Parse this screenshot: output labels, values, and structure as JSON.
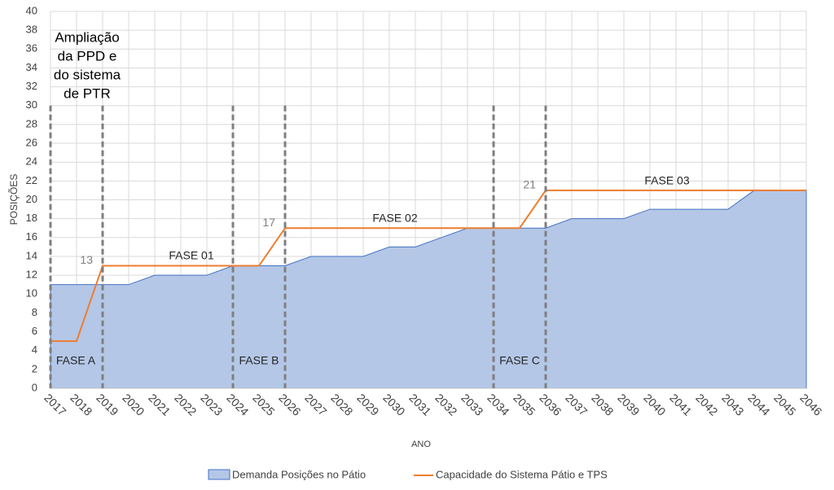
{
  "chart_data": {
    "type": "area-line",
    "x_label": "ANO",
    "y_label": "POSIÇÕES",
    "categories": [
      "2017",
      "2018",
      "2019",
      "2020",
      "2021",
      "2022",
      "2023",
      "2024",
      "2025",
      "2026",
      "2027",
      "2028",
      "2029",
      "2030",
      "2031",
      "2032",
      "2033",
      "2034",
      "2035",
      "2036",
      "2037",
      "2038",
      "2039",
      "2040",
      "2041",
      "2042",
      "2043",
      "2044",
      "2045",
      "2046"
    ],
    "series": [
      {
        "name": "Demanda Posições no Pátio",
        "kind": "area",
        "color": "#4472c4",
        "fill": "#b4c7e7",
        "values": [
          11,
          11,
          11,
          11,
          12,
          12,
          12,
          13,
          13,
          13,
          14,
          14,
          14,
          15,
          15,
          16,
          17,
          17,
          17,
          17,
          18,
          18,
          18,
          19,
          19,
          19,
          19,
          21,
          21,
          21
        ]
      },
      {
        "name": "Capacidade do Sistema Pátio e TPS",
        "kind": "line",
        "color": "#ed7d31",
        "values": [
          5,
          5,
          13,
          13,
          13,
          13,
          13,
          13,
          13,
          17,
          17,
          17,
          17,
          17,
          17,
          17,
          17,
          17,
          17,
          21,
          21,
          21,
          21,
          21,
          21,
          21,
          21,
          21,
          21,
          21
        ],
        "value_labels": [
          null,
          null,
          "13",
          null,
          null,
          null,
          null,
          null,
          null,
          "17",
          null,
          null,
          null,
          null,
          null,
          null,
          null,
          null,
          null,
          "21",
          null,
          null,
          null,
          null,
          null,
          null,
          null,
          null,
          null,
          null
        ]
      }
    ],
    "ylim": [
      0,
      40
    ],
    "yticks": [
      0,
      2,
      4,
      6,
      8,
      10,
      12,
      14,
      16,
      18,
      20,
      22,
      24,
      26,
      28,
      30,
      32,
      34,
      36,
      38,
      40
    ],
    "grid": true,
    "legend": "bottom",
    "annotations": [
      "FASE A",
      "FASE B",
      "FASE C",
      "FASE 01",
      "FASE 02",
      "FASE 03"
    ],
    "note_lines": [
      "Ampliação",
      "da PPD e",
      "do sistema",
      "de PTR"
    ]
  }
}
